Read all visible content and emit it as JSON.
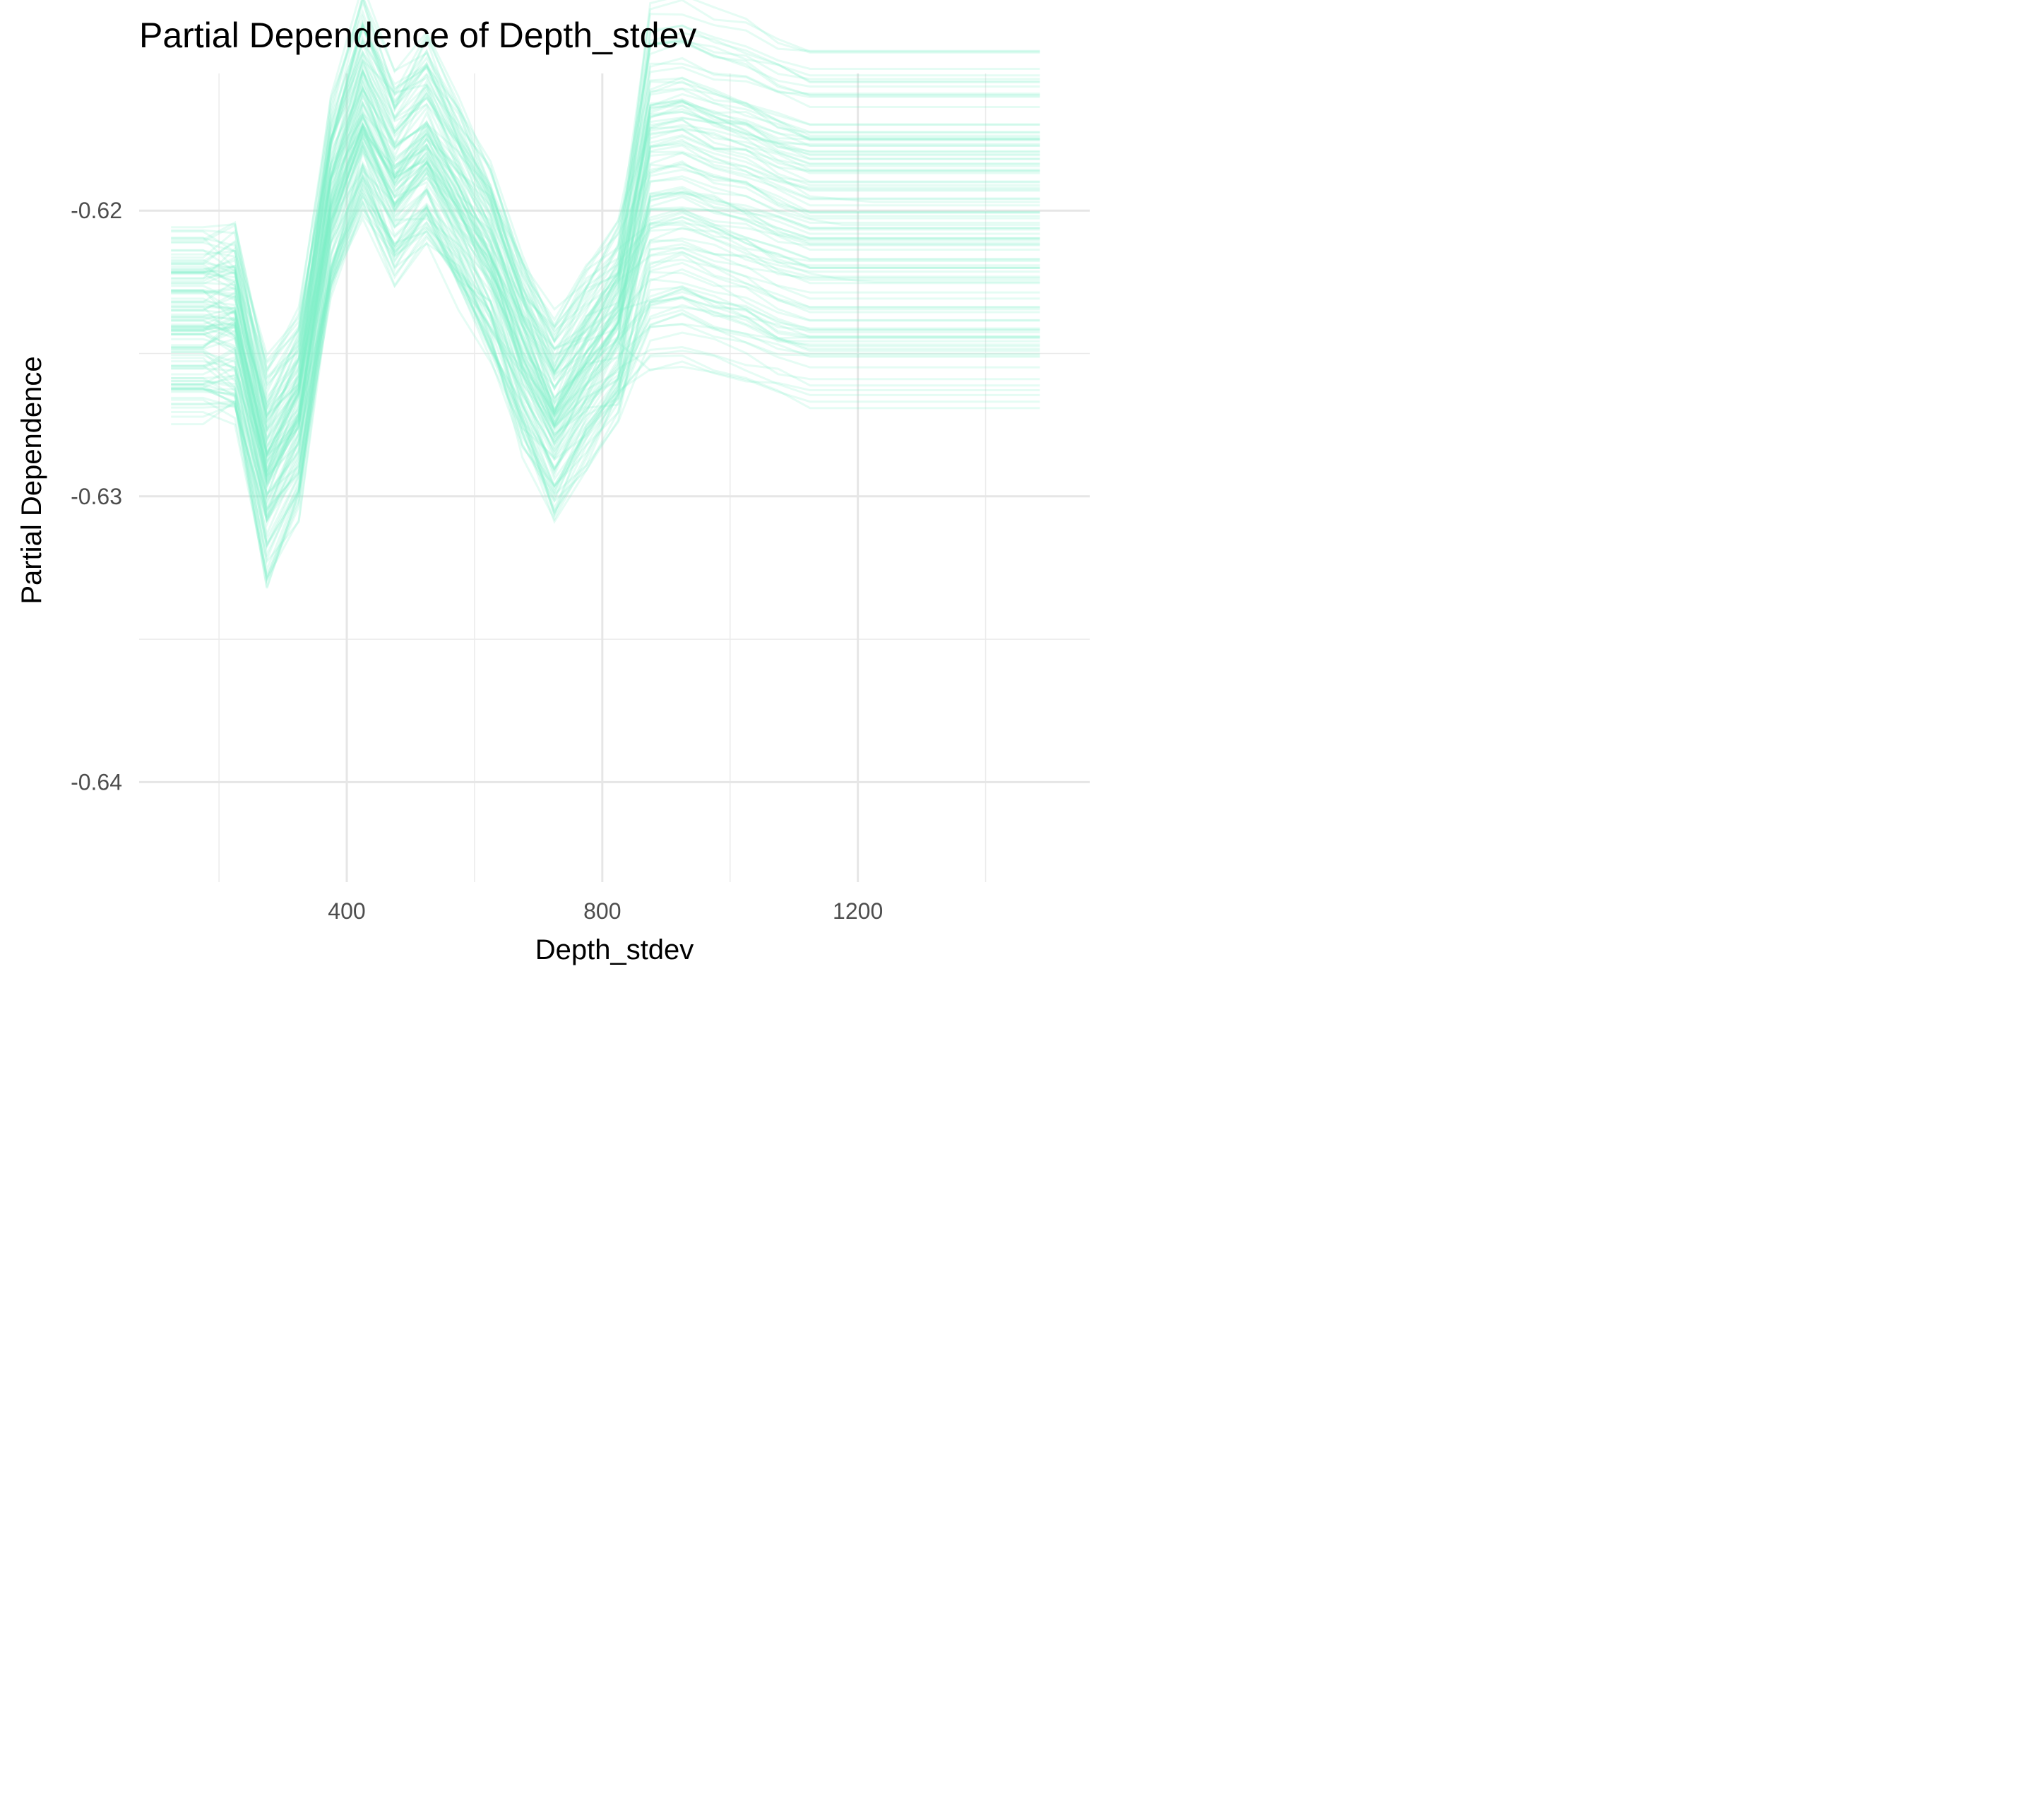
{
  "chart_data": {
    "type": "line",
    "title": "Partial Dependence of Depth_stdev",
    "xlabel": "Depth_stdev",
    "ylabel": "Partial Dependence",
    "xlim": [
      75,
      1563
    ],
    "ylim": [
      -0.6435,
      -0.6152
    ],
    "x_ticks": [
      400,
      800,
      1200
    ],
    "y_ticks": [
      -0.62,
      -0.63,
      -0.64
    ],
    "x_tick_labels": [
      "400",
      "800",
      "1200"
    ],
    "y_tick_labels": [
      "-0.62",
      "-0.63",
      "-0.64"
    ],
    "grid": true,
    "legend": "none",
    "line_color": "#7fefc8",
    "line_opacity": 0.2,
    "x": [
      125,
      175,
      225,
      275,
      325,
      375,
      425,
      475,
      525,
      575,
      625,
      675,
      725,
      775,
      825,
      875,
      925,
      975,
      1025,
      1075,
      1125,
      1175,
      1225,
      1275,
      1325,
      1375,
      1425,
      1485
    ],
    "representative_series": [
      {
        "values": [
          -0.6235,
          -0.6235,
          -0.6236,
          -0.6285,
          -0.6265,
          -0.6195,
          -0.6165,
          -0.6188,
          -0.6175,
          -0.6195,
          -0.6215,
          -0.6245,
          -0.6268,
          -0.625,
          -0.6235,
          -0.619,
          -0.6188,
          -0.6192,
          -0.6195,
          -0.62,
          -0.6203,
          -0.6205,
          -0.6205,
          -0.6205,
          -0.6205,
          -0.6205,
          -0.6205,
          -0.6205
        ]
      },
      {
        "values": [
          -0.6245,
          -0.6245,
          -0.6248,
          -0.63,
          -0.627,
          -0.62,
          -0.617,
          -0.619,
          -0.618,
          -0.62,
          -0.6225,
          -0.6255,
          -0.6275,
          -0.6255,
          -0.6245,
          -0.6205,
          -0.6205,
          -0.621,
          -0.6215,
          -0.6218,
          -0.6222,
          -0.6224,
          -0.6225,
          -0.6225,
          -0.6225,
          -0.6225,
          -0.6225,
          -0.6225
        ]
      },
      {
        "values": [
          -0.6228,
          -0.6228,
          -0.623,
          -0.628,
          -0.6262,
          -0.6192,
          -0.616,
          -0.6185,
          -0.617,
          -0.6192,
          -0.621,
          -0.624,
          -0.6262,
          -0.6245,
          -0.6228,
          -0.6178,
          -0.6176,
          -0.618,
          -0.6183,
          -0.6188,
          -0.6195,
          -0.6196,
          -0.6197,
          -0.6197,
          -0.6197,
          -0.6197,
          -0.6197,
          -0.6197
        ]
      }
    ]
  }
}
